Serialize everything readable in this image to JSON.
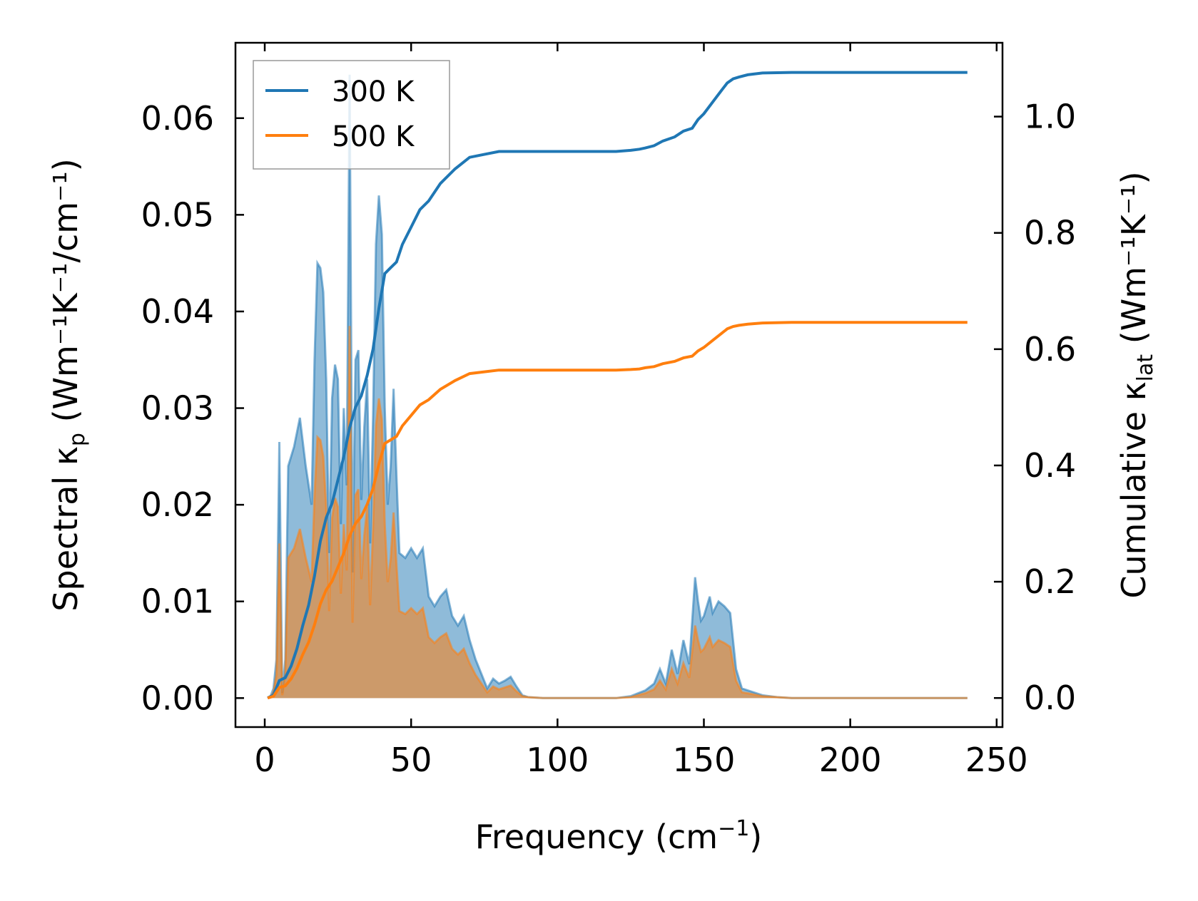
{
  "chart_data": {
    "type": "line",
    "xlabel_main": "Frequency (cm",
    "xlabel_sup": "−1",
    "xlabel_end": ")",
    "ylabel_left": "Spectral κ",
    "ylabel_left_sub": "p",
    "ylabel_left_units": " (Wm⁻¹K⁻¹/cm⁻¹)",
    "ylabel_right": "Cumulative κ",
    "ylabel_right_sub": "lat",
    "ylabel_right_units": " (Wm⁻¹K⁻¹)",
    "xlim": [
      -10,
      252
    ],
    "ylim_left": [
      -0.003,
      0.0678
    ],
    "ylim_right": [
      -0.05,
      1.127
    ],
    "xticks": [
      0,
      50,
      100,
      150,
      200,
      250
    ],
    "xtick_labels": [
      "0",
      "50",
      "100",
      "150",
      "200",
      "250"
    ],
    "yticks_left": [
      0.0,
      0.01,
      0.02,
      0.03,
      0.04,
      0.05,
      0.06
    ],
    "ytick_labels_left": [
      "0.00",
      "0.01",
      "0.02",
      "0.03",
      "0.04",
      "0.05",
      "0.06"
    ],
    "yticks_right": [
      0.0,
      0.2,
      0.4,
      0.6,
      0.8,
      1.0
    ],
    "ytick_labels_right": [
      "0.0",
      "0.2",
      "0.4",
      "0.6",
      "0.8",
      "1.0"
    ],
    "legend_placement": "upper-left",
    "colors": {
      "300K": "#1f77b4",
      "500K": "#ff7f0e"
    },
    "series": [
      {
        "name": "300 K",
        "spectral": {
          "x": [
            1,
            2,
            3,
            4,
            5,
            6,
            7,
            8,
            9,
            10,
            12,
            14,
            16,
            17,
            18,
            19,
            20,
            21,
            22,
            23,
            24,
            25,
            26,
            27,
            28,
            29,
            30,
            31,
            32,
            33,
            34,
            35,
            36,
            37,
            38,
            39,
            40,
            41,
            42,
            43,
            44,
            45,
            46,
            48,
            50,
            52,
            54,
            56,
            58,
            60,
            62,
            64,
            66,
            68,
            70,
            72,
            74,
            76,
            78,
            80,
            82,
            84,
            86,
            88,
            90,
            95,
            100,
            110,
            120,
            125,
            130,
            133,
            135,
            137,
            139,
            141,
            143,
            145,
            147,
            148,
            149,
            150,
            152,
            153,
            155,
            157,
            159,
            161,
            163,
            165,
            170,
            175,
            180,
            190,
            200,
            220,
            240
          ],
          "y": [
            0,
            0.0002,
            0.001,
            0.004,
            0.0265,
            0.0005,
            0.004,
            0.024,
            0.025,
            0.026,
            0.029,
            0.024,
            0.02,
            0.035,
            0.045,
            0.0445,
            0.042,
            0.033,
            0.015,
            0.031,
            0.0345,
            0.033,
            0.018,
            0.03,
            0.022,
            0.0645,
            0.013,
            0.035,
            0.036,
            0.0205,
            0.028,
            0.033,
            0.016,
            0.029,
            0.047,
            0.052,
            0.048,
            0.03,
            0.02,
            0.024,
            0.032,
            0.023,
            0.015,
            0.0145,
            0.0155,
            0.0145,
            0.0155,
            0.0105,
            0.0095,
            0.0105,
            0.0112,
            0.0085,
            0.0075,
            0.0085,
            0.006,
            0.004,
            0.0025,
            0.001,
            0.002,
            0.0015,
            0.0018,
            0.0022,
            0.0012,
            0.0003,
            0.0001,
            0,
            0,
            0,
            0,
            0.0002,
            0.0008,
            0.0015,
            0.003,
            0.0015,
            0.005,
            0.0025,
            0.006,
            0.0035,
            0.0125,
            0.01,
            0.008,
            0.0085,
            0.0105,
            0.0088,
            0.01,
            0.0095,
            0.0088,
            0.003,
            0.001,
            0.0008,
            0.0003,
            0.0001,
            0,
            0,
            0,
            0,
            0
          ]
        },
        "cumulative": {
          "x": [
            1,
            3,
            5,
            7,
            9,
            11,
            13,
            15,
            17,
            19,
            21,
            23,
            25,
            27,
            29,
            31,
            33,
            35,
            37,
            39,
            41,
            43,
            45,
            47,
            50,
            53,
            56,
            60,
            65,
            70,
            75,
            80,
            85,
            90,
            100,
            110,
            120,
            125,
            128,
            130,
            133,
            136,
            140,
            143,
            146,
            148,
            150,
            153,
            156,
            158,
            160,
            162,
            165,
            170,
            180,
            200,
            240
          ],
          "y": [
            0,
            0.005,
            0.03,
            0.035,
            0.055,
            0.085,
            0.125,
            0.16,
            0.21,
            0.27,
            0.31,
            0.335,
            0.375,
            0.415,
            0.465,
            0.5,
            0.52,
            0.555,
            0.6,
            0.67,
            0.73,
            0.74,
            0.75,
            0.78,
            0.81,
            0.84,
            0.855,
            0.885,
            0.91,
            0.93,
            0.935,
            0.94,
            0.94,
            0.94,
            0.94,
            0.94,
            0.94,
            0.942,
            0.944,
            0.946,
            0.95,
            0.958,
            0.965,
            0.975,
            0.98,
            0.995,
            1.005,
            1.025,
            1.045,
            1.058,
            1.065,
            1.068,
            1.072,
            1.075,
            1.076,
            1.076,
            1.076
          ]
        }
      },
      {
        "name": "500 K",
        "spectral": {
          "x": [
            1,
            2,
            3,
            4,
            5,
            6,
            7,
            8,
            9,
            10,
            12,
            14,
            16,
            17,
            18,
            19,
            20,
            21,
            22,
            23,
            24,
            25,
            26,
            27,
            28,
            29,
            30,
            31,
            32,
            33,
            34,
            35,
            36,
            37,
            38,
            39,
            40,
            41,
            42,
            43,
            44,
            45,
            46,
            48,
            50,
            52,
            54,
            56,
            58,
            60,
            62,
            64,
            66,
            68,
            70,
            72,
            74,
            76,
            78,
            80,
            82,
            84,
            86,
            88,
            90,
            95,
            100,
            110,
            120,
            125,
            130,
            133,
            135,
            137,
            139,
            141,
            143,
            145,
            147,
            148,
            149,
            150,
            152,
            153,
            155,
            157,
            159,
            161,
            163,
            165,
            170,
            175,
            180,
            190,
            200,
            220,
            240
          ],
          "y": [
            0,
            0.0001,
            0.0006,
            0.0024,
            0.016,
            0.0003,
            0.0024,
            0.0145,
            0.015,
            0.0155,
            0.0175,
            0.0145,
            0.012,
            0.021,
            0.027,
            0.0267,
            0.025,
            0.0198,
            0.009,
            0.0186,
            0.0207,
            0.0198,
            0.0108,
            0.018,
            0.0132,
            0.0385,
            0.0078,
            0.021,
            0.0216,
            0.0123,
            0.0168,
            0.0198,
            0.0096,
            0.0174,
            0.0282,
            0.031,
            0.0288,
            0.018,
            0.012,
            0.0144,
            0.0192,
            0.0138,
            0.009,
            0.0087,
            0.0093,
            0.0087,
            0.0093,
            0.0063,
            0.0057,
            0.0063,
            0.0067,
            0.0051,
            0.0045,
            0.0051,
            0.0036,
            0.0024,
            0.0015,
            0.0006,
            0.0012,
            0.0009,
            0.0011,
            0.0013,
            0.0007,
            0.0002,
            0.0001,
            0,
            0,
            0,
            0,
            0.0001,
            0.0005,
            0.0009,
            0.0018,
            0.0009,
            0.003,
            0.0015,
            0.0036,
            0.0021,
            0.0075,
            0.006,
            0.0048,
            0.0051,
            0.0063,
            0.0053,
            0.006,
            0.0057,
            0.0053,
            0.0018,
            0.0006,
            0.0005,
            0.0002,
            0.0001,
            0,
            0,
            0,
            0,
            0
          ]
        },
        "cumulative": {
          "x": [
            1,
            3,
            5,
            7,
            9,
            11,
            13,
            15,
            17,
            19,
            21,
            23,
            25,
            27,
            29,
            31,
            33,
            35,
            37,
            39,
            41,
            43,
            45,
            47,
            50,
            53,
            56,
            60,
            65,
            70,
            75,
            80,
            85,
            90,
            100,
            110,
            120,
            125,
            128,
            130,
            133,
            136,
            140,
            143,
            146,
            148,
            150,
            153,
            156,
            158,
            160,
            162,
            165,
            170,
            180,
            200,
            240
          ],
          "y": [
            0,
            0.003,
            0.018,
            0.021,
            0.033,
            0.051,
            0.075,
            0.096,
            0.126,
            0.162,
            0.186,
            0.201,
            0.225,
            0.249,
            0.279,
            0.3,
            0.312,
            0.333,
            0.36,
            0.402,
            0.438,
            0.444,
            0.45,
            0.468,
            0.486,
            0.504,
            0.513,
            0.531,
            0.546,
            0.558,
            0.561,
            0.564,
            0.564,
            0.564,
            0.564,
            0.564,
            0.564,
            0.565,
            0.566,
            0.568,
            0.57,
            0.575,
            0.579,
            0.585,
            0.588,
            0.597,
            0.603,
            0.615,
            0.627,
            0.635,
            0.639,
            0.641,
            0.643,
            0.645,
            0.646,
            0.646,
            0.646
          ]
        }
      }
    ]
  }
}
